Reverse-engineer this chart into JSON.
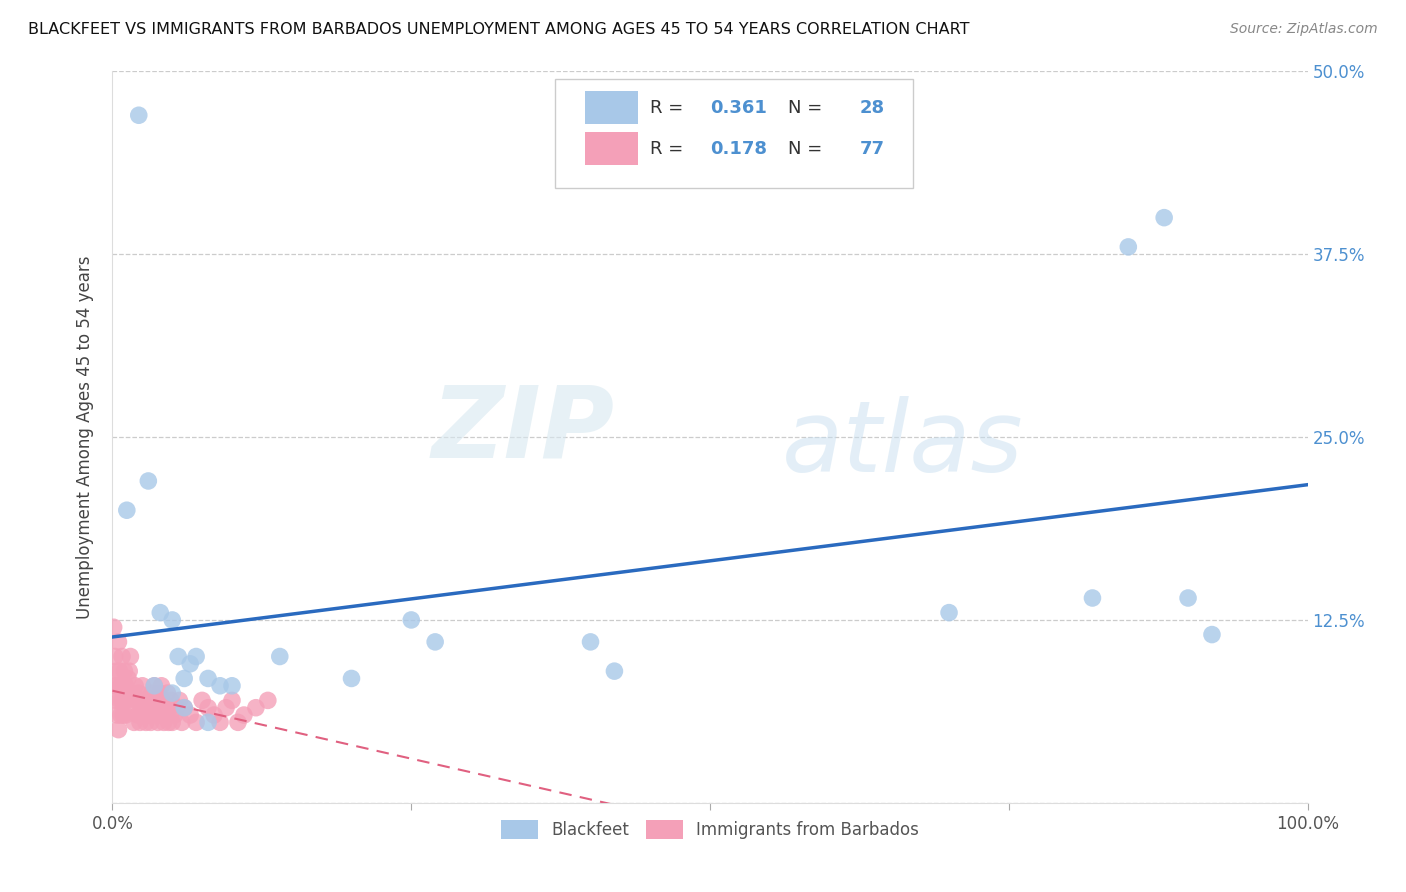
{
  "title": "BLACKFEET VS IMMIGRANTS FROM BARBADOS UNEMPLOYMENT AMONG AGES 45 TO 54 YEARS CORRELATION CHART",
  "source": "Source: ZipAtlas.com",
  "ylabel_label": "Unemployment Among Ages 45 to 54 years",
  "legend_label1": "Blackfeet",
  "legend_label2": "Immigrants from Barbados",
  "R1": "0.361",
  "N1": "28",
  "R2": "0.178",
  "N2": "77",
  "color_blue": "#a8c8e8",
  "color_pink": "#f4a0b8",
  "trendline1_color": "#2a6abf",
  "trendline2_color": "#e06080",
  "diagonal_color": "#cccccc",
  "blackfeet_x": [
    0.022,
    0.03,
    0.04,
    0.05,
    0.055,
    0.06,
    0.065,
    0.07,
    0.08,
    0.09,
    0.1,
    0.14,
    0.2,
    0.25,
    0.27,
    0.4,
    0.42,
    0.7,
    0.82,
    0.85,
    0.88,
    0.9,
    0.92,
    0.05,
    0.06,
    0.08,
    0.012,
    0.035
  ],
  "blackfeet_y": [
    0.47,
    0.22,
    0.13,
    0.125,
    0.1,
    0.085,
    0.095,
    0.1,
    0.085,
    0.08,
    0.08,
    0.1,
    0.085,
    0.125,
    0.11,
    0.11,
    0.09,
    0.13,
    0.14,
    0.38,
    0.4,
    0.14,
    0.115,
    0.075,
    0.065,
    0.055,
    0.2,
    0.08
  ],
  "barbados_x": [
    0.001,
    0.002,
    0.002,
    0.003,
    0.003,
    0.004,
    0.004,
    0.005,
    0.005,
    0.006,
    0.006,
    0.007,
    0.007,
    0.008,
    0.008,
    0.009,
    0.009,
    0.01,
    0.01,
    0.011,
    0.011,
    0.012,
    0.013,
    0.014,
    0.015,
    0.016,
    0.017,
    0.018,
    0.019,
    0.02,
    0.021,
    0.022,
    0.023,
    0.024,
    0.025,
    0.026,
    0.027,
    0.028,
    0.029,
    0.03,
    0.031,
    0.032,
    0.033,
    0.034,
    0.035,
    0.036,
    0.037,
    0.038,
    0.039,
    0.04,
    0.041,
    0.042,
    0.043,
    0.044,
    0.045,
    0.046,
    0.047,
    0.048,
    0.049,
    0.05,
    0.052,
    0.054,
    0.056,
    0.058,
    0.06,
    0.065,
    0.07,
    0.075,
    0.08,
    0.085,
    0.09,
    0.095,
    0.1,
    0.105,
    0.11,
    0.12,
    0.13
  ],
  "barbados_y": [
    0.12,
    0.08,
    0.1,
    0.07,
    0.09,
    0.06,
    0.08,
    0.05,
    0.11,
    0.07,
    0.09,
    0.06,
    0.08,
    0.1,
    0.07,
    0.08,
    0.06,
    0.09,
    0.07,
    0.06,
    0.08,
    0.07,
    0.085,
    0.09,
    0.1,
    0.075,
    0.065,
    0.055,
    0.08,
    0.07,
    0.06,
    0.075,
    0.055,
    0.065,
    0.08,
    0.07,
    0.06,
    0.055,
    0.07,
    0.065,
    0.06,
    0.055,
    0.075,
    0.065,
    0.08,
    0.07,
    0.06,
    0.055,
    0.075,
    0.065,
    0.08,
    0.07,
    0.055,
    0.065,
    0.06,
    0.075,
    0.055,
    0.065,
    0.07,
    0.055,
    0.06,
    0.065,
    0.07,
    0.055,
    0.065,
    0.06,
    0.055,
    0.07,
    0.065,
    0.06,
    0.055,
    0.065,
    0.07,
    0.055,
    0.06,
    0.065,
    0.07
  ],
  "watermark_zip": "ZIP",
  "watermark_atlas": "atlas",
  "xlim": [
    0.0,
    1.0
  ],
  "ylim": [
    0.0,
    0.5
  ],
  "ytick_vals": [
    0.0,
    0.125,
    0.25,
    0.375,
    0.5
  ],
  "ytick_labels": [
    "",
    "12.5%",
    "25.0%",
    "37.5%",
    "50.0%"
  ],
  "xtick_vals": [
    0.0,
    0.25,
    0.5,
    0.75,
    1.0
  ],
  "xtick_labels": [
    "0.0%",
    "",
    "",
    "",
    "100.0%"
  ]
}
